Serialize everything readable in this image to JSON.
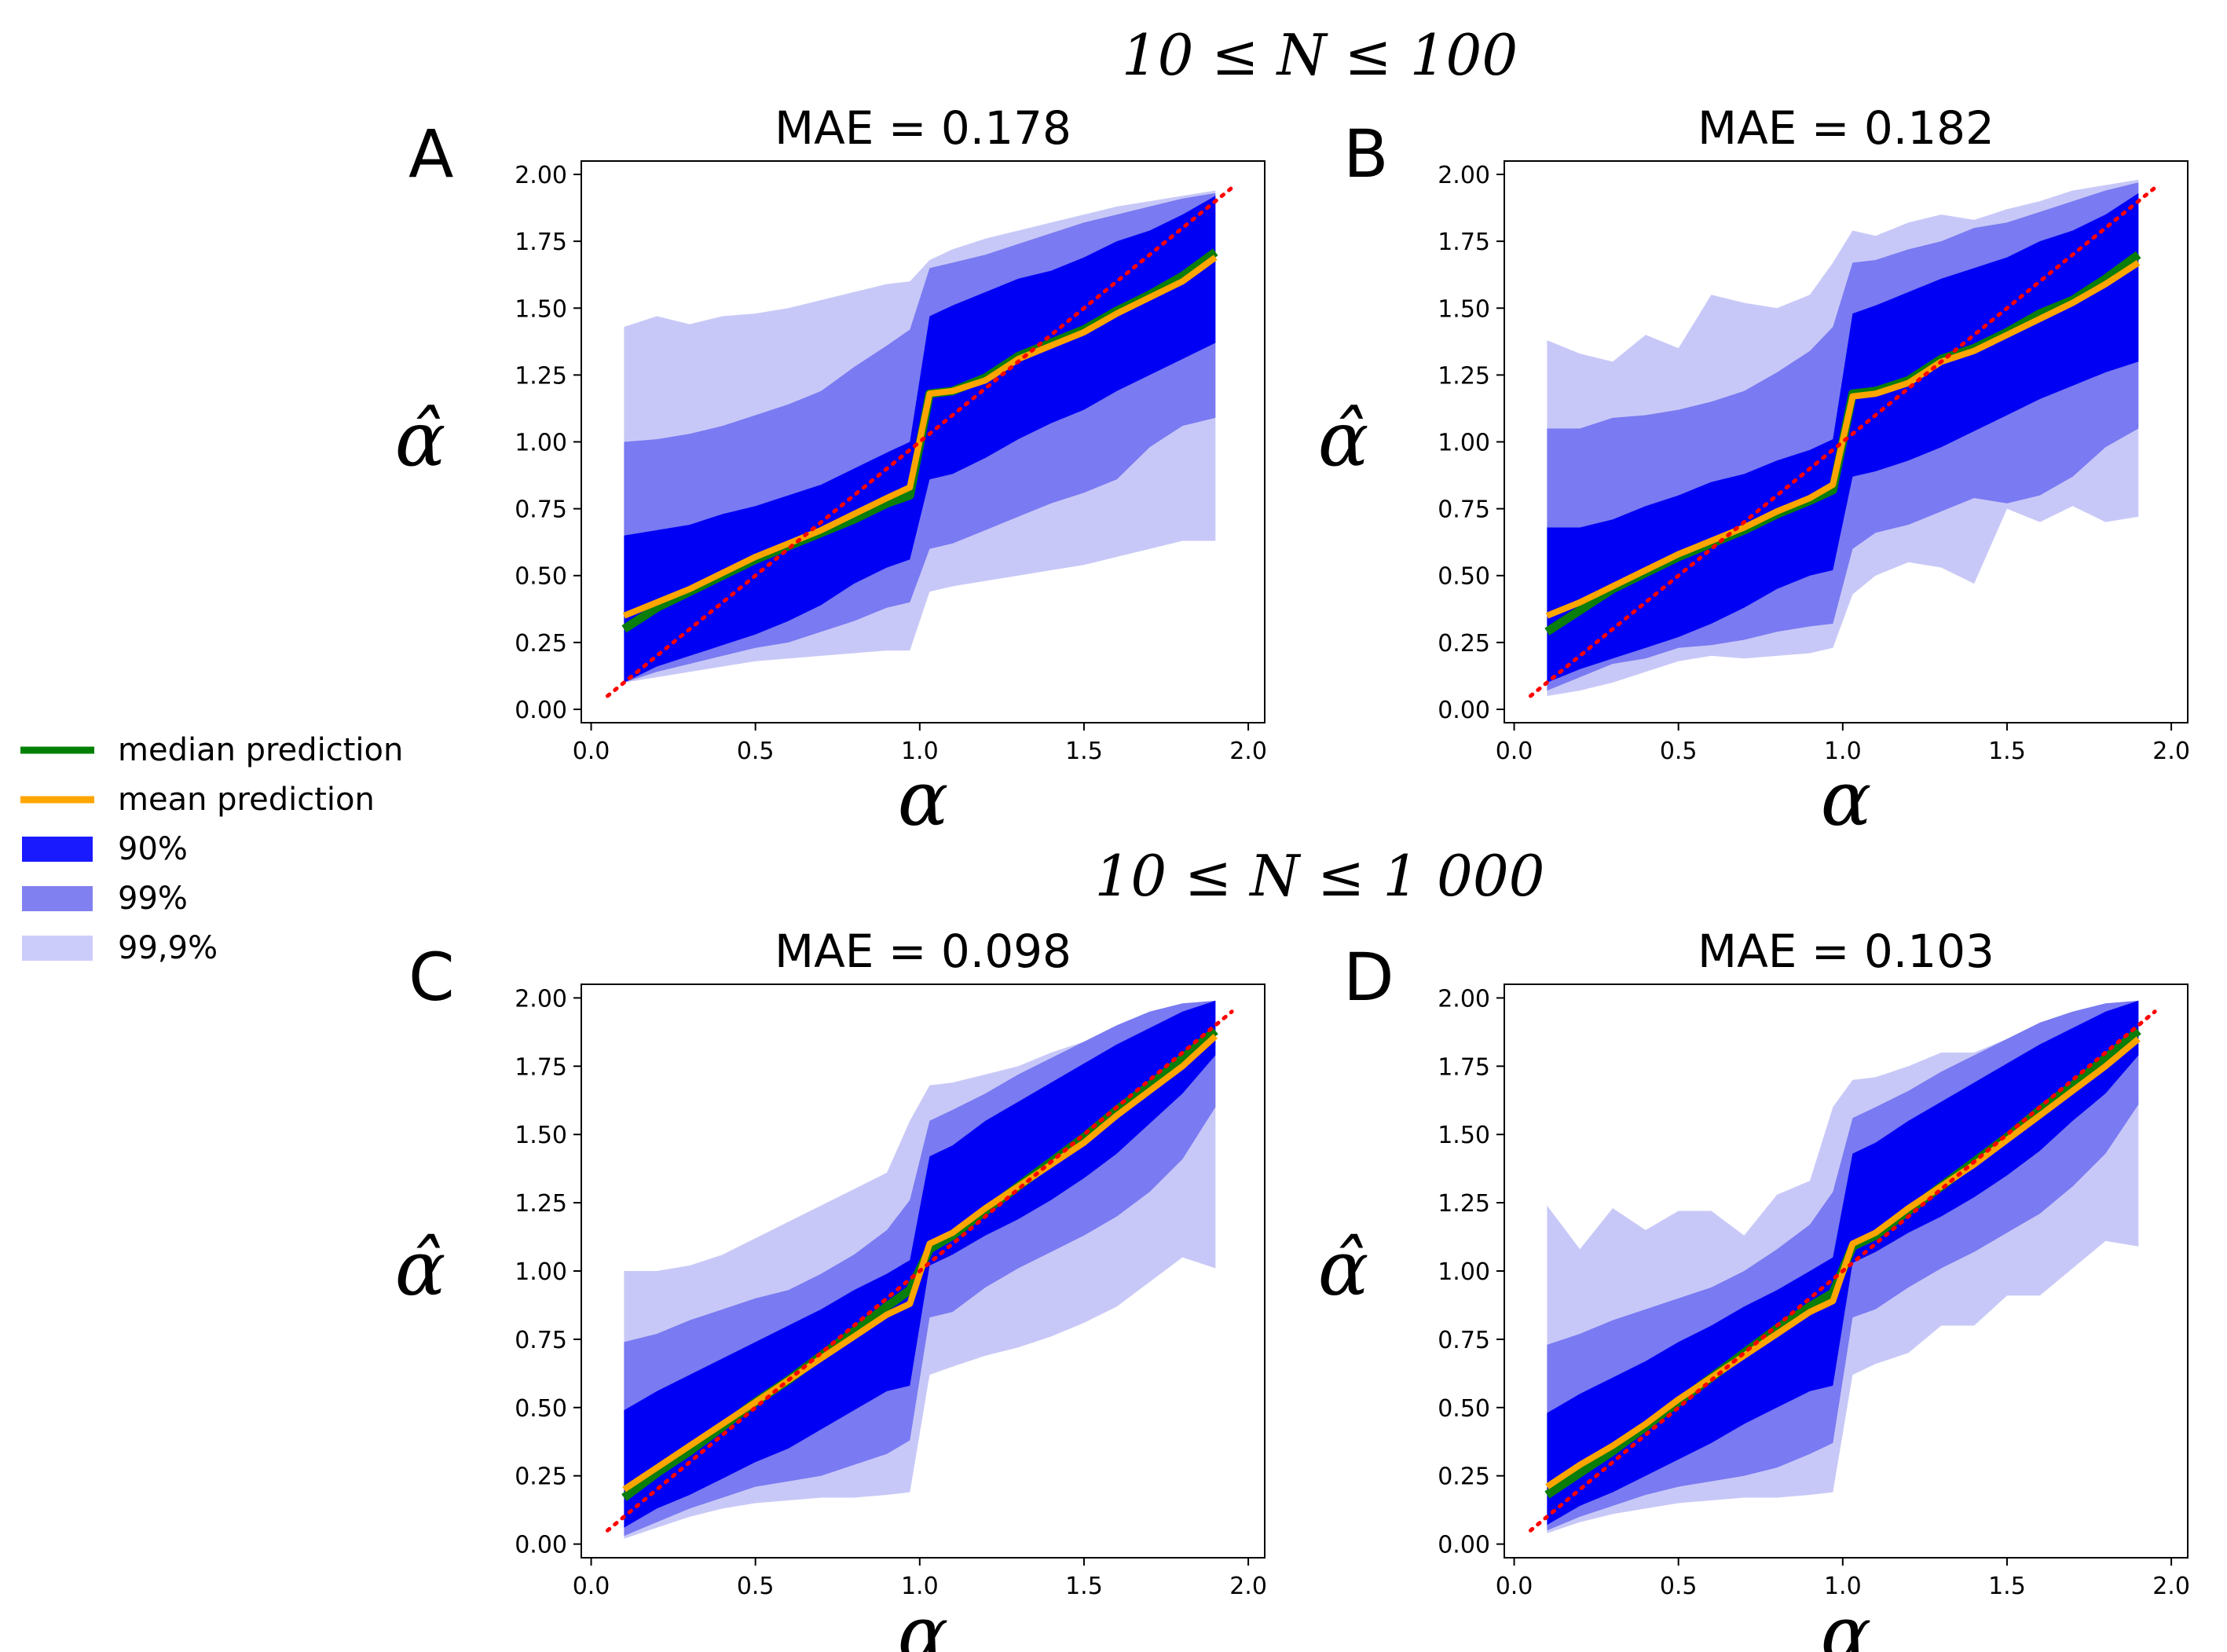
{
  "figure": {
    "row_titles": [
      "10 ≤ N ≤ 100",
      "10 ≤ N ≤ 1 000"
    ],
    "legend": [
      {
        "label": "median prediction",
        "kind": "line",
        "color": "#008000"
      },
      {
        "label": "mean prediction",
        "kind": "line",
        "color": "#ffa500"
      },
      {
        "label": "90%",
        "kind": "patch",
        "color": "#1a1aff"
      },
      {
        "label": "99%",
        "kind": "patch",
        "color": "#8080f0"
      },
      {
        "label": "99,9%",
        "kind": "patch",
        "color": "#ccccfa"
      }
    ],
    "colors": {
      "band90": "#0000f5",
      "band99": "#7a7af2",
      "band999": "#c8c8f8",
      "median": "#0a7d0a",
      "mean": "#ffa500",
      "identity": "#ff0000"
    }
  },
  "chart_data": [
    {
      "type": "area",
      "panel": "A",
      "title": "MAE = 0.178",
      "xlabel": "α",
      "ylabel": "α̂",
      "xlim": [
        -0.03,
        2.05
      ],
      "ylim": [
        -0.05,
        2.05
      ],
      "xticks": [
        "0.0",
        "0.5",
        "1.0",
        "1.5",
        "2.0"
      ],
      "yticks": [
        "0.00",
        "0.25",
        "0.50",
        "0.75",
        "1.00",
        "1.25",
        "1.50",
        "1.75",
        "2.00"
      ],
      "x": [
        0.1,
        0.2,
        0.3,
        0.4,
        0.5,
        0.6,
        0.7,
        0.8,
        0.9,
        0.97,
        1.03,
        1.1,
        1.2,
        1.3,
        1.4,
        1.5,
        1.6,
        1.7,
        1.8,
        1.9
      ],
      "median": [
        0.3,
        0.38,
        0.44,
        0.5,
        0.56,
        0.61,
        0.66,
        0.71,
        0.77,
        0.8,
        1.18,
        1.19,
        1.24,
        1.32,
        1.37,
        1.42,
        1.49,
        1.55,
        1.62,
        1.71
      ],
      "mean": [
        0.35,
        0.4,
        0.45,
        0.51,
        0.57,
        0.62,
        0.67,
        0.73,
        0.79,
        0.83,
        1.18,
        1.19,
        1.23,
        1.31,
        1.36,
        1.41,
        1.48,
        1.54,
        1.6,
        1.69
      ],
      "band90": {
        "lower": [
          0.1,
          0.16,
          0.2,
          0.24,
          0.28,
          0.33,
          0.39,
          0.47,
          0.53,
          0.56,
          0.86,
          0.88,
          0.94,
          1.01,
          1.07,
          1.12,
          1.19,
          1.25,
          1.31,
          1.37
        ],
        "upper": [
          0.65,
          0.67,
          0.69,
          0.73,
          0.76,
          0.8,
          0.84,
          0.9,
          0.96,
          1.0,
          1.47,
          1.51,
          1.56,
          1.61,
          1.64,
          1.69,
          1.75,
          1.79,
          1.85,
          1.92
        ]
      },
      "band99": {
        "lower": [
          0.1,
          0.14,
          0.17,
          0.2,
          0.23,
          0.25,
          0.29,
          0.33,
          0.38,
          0.4,
          0.6,
          0.62,
          0.67,
          0.72,
          0.77,
          0.81,
          0.86,
          0.98,
          1.06,
          1.09
        ],
        "upper": [
          1.0,
          1.01,
          1.03,
          1.06,
          1.1,
          1.14,
          1.19,
          1.28,
          1.36,
          1.42,
          1.65,
          1.67,
          1.7,
          1.74,
          1.78,
          1.82,
          1.85,
          1.88,
          1.91,
          1.93
        ]
      },
      "band999": {
        "lower": [
          0.1,
          0.12,
          0.14,
          0.16,
          0.18,
          0.19,
          0.2,
          0.21,
          0.22,
          0.22,
          0.44,
          0.46,
          0.48,
          0.5,
          0.52,
          0.54,
          0.57,
          0.6,
          0.63,
          0.63
        ],
        "upper": [
          1.43,
          1.47,
          1.44,
          1.47,
          1.48,
          1.5,
          1.53,
          1.56,
          1.59,
          1.6,
          1.68,
          1.72,
          1.76,
          1.79,
          1.82,
          1.85,
          1.88,
          1.9,
          1.92,
          1.94
        ]
      }
    },
    {
      "type": "area",
      "panel": "B",
      "title": "MAE = 0.182",
      "xlabel": "α",
      "ylabel": "α̂",
      "xlim": [
        -0.03,
        2.05
      ],
      "ylim": [
        -0.05,
        2.05
      ],
      "xticks": [
        "0.0",
        "0.5",
        "1.0",
        "1.5",
        "2.0"
      ],
      "yticks": [
        "0.00",
        "0.25",
        "0.50",
        "0.75",
        "1.00",
        "1.25",
        "1.50",
        "1.75",
        "2.00"
      ],
      "x": [
        0.1,
        0.2,
        0.3,
        0.4,
        0.5,
        0.6,
        0.7,
        0.8,
        0.9,
        0.97,
        1.03,
        1.1,
        1.2,
        1.3,
        1.4,
        1.5,
        1.6,
        1.7,
        1.8,
        1.9
      ],
      "median": [
        0.29,
        0.37,
        0.45,
        0.51,
        0.57,
        0.62,
        0.67,
        0.73,
        0.78,
        0.82,
        1.18,
        1.19,
        1.23,
        1.31,
        1.35,
        1.41,
        1.48,
        1.53,
        1.61,
        1.7
      ],
      "mean": [
        0.35,
        0.4,
        0.46,
        0.52,
        0.58,
        0.63,
        0.68,
        0.74,
        0.79,
        0.84,
        1.17,
        1.18,
        1.22,
        1.3,
        1.34,
        1.4,
        1.46,
        1.52,
        1.59,
        1.67
      ],
      "band90": {
        "lower": [
          0.1,
          0.15,
          0.19,
          0.23,
          0.27,
          0.32,
          0.38,
          0.45,
          0.5,
          0.52,
          0.87,
          0.89,
          0.93,
          0.98,
          1.04,
          1.1,
          1.16,
          1.21,
          1.26,
          1.3
        ],
        "upper": [
          0.68,
          0.68,
          0.71,
          0.76,
          0.8,
          0.85,
          0.88,
          0.93,
          0.97,
          1.01,
          1.48,
          1.51,
          1.56,
          1.61,
          1.65,
          1.69,
          1.75,
          1.79,
          1.85,
          1.93
        ]
      },
      "band99": {
        "lower": [
          0.07,
          0.12,
          0.17,
          0.19,
          0.23,
          0.24,
          0.26,
          0.29,
          0.31,
          0.32,
          0.6,
          0.66,
          0.69,
          0.74,
          0.79,
          0.77,
          0.8,
          0.87,
          0.98,
          1.05
        ],
        "upper": [
          1.05,
          1.05,
          1.09,
          1.1,
          1.12,
          1.15,
          1.19,
          1.26,
          1.34,
          1.43,
          1.67,
          1.68,
          1.72,
          1.75,
          1.8,
          1.82,
          1.86,
          1.9,
          1.94,
          1.97
        ]
      },
      "band999": {
        "lower": [
          0.05,
          0.07,
          0.1,
          0.14,
          0.18,
          0.2,
          0.19,
          0.2,
          0.21,
          0.23,
          0.43,
          0.5,
          0.55,
          0.53,
          0.47,
          0.75,
          0.7,
          0.76,
          0.7,
          0.72
        ],
        "upper": [
          1.38,
          1.33,
          1.3,
          1.4,
          1.35,
          1.55,
          1.52,
          1.5,
          1.55,
          1.67,
          1.79,
          1.77,
          1.82,
          1.85,
          1.83,
          1.87,
          1.9,
          1.94,
          1.96,
          1.98
        ]
      }
    },
    {
      "type": "area",
      "panel": "C",
      "title": "MAE = 0.098",
      "xlabel": "α",
      "ylabel": "α̂",
      "xlim": [
        -0.03,
        2.05
      ],
      "ylim": [
        -0.05,
        2.05
      ],
      "xticks": [
        "0.0",
        "0.5",
        "1.0",
        "1.5",
        "2.0"
      ],
      "yticks": [
        "0.00",
        "0.25",
        "0.50",
        "0.75",
        "1.00",
        "1.25",
        "1.50",
        "1.75",
        "2.00"
      ],
      "x": [
        0.1,
        0.2,
        0.3,
        0.4,
        0.5,
        0.6,
        0.7,
        0.8,
        0.9,
        0.97,
        1.03,
        1.1,
        1.2,
        1.3,
        1.4,
        1.5,
        1.6,
        1.7,
        1.8,
        1.9
      ],
      "median": [
        0.17,
        0.26,
        0.34,
        0.43,
        0.52,
        0.6,
        0.69,
        0.78,
        0.87,
        0.93,
        1.08,
        1.13,
        1.22,
        1.31,
        1.4,
        1.49,
        1.59,
        1.68,
        1.78,
        1.88
      ],
      "mean": [
        0.2,
        0.28,
        0.36,
        0.44,
        0.52,
        0.6,
        0.68,
        0.76,
        0.84,
        0.88,
        1.1,
        1.14,
        1.23,
        1.31,
        1.39,
        1.47,
        1.57,
        1.66,
        1.75,
        1.86
      ],
      "band90": {
        "lower": [
          0.06,
          0.13,
          0.18,
          0.24,
          0.3,
          0.35,
          0.42,
          0.49,
          0.56,
          0.58,
          1.02,
          1.06,
          1.13,
          1.19,
          1.26,
          1.34,
          1.43,
          1.54,
          1.65,
          1.79
        ],
        "upper": [
          0.49,
          0.56,
          0.62,
          0.68,
          0.74,
          0.8,
          0.86,
          0.93,
          0.99,
          1.04,
          1.42,
          1.46,
          1.55,
          1.62,
          1.69,
          1.76,
          1.83,
          1.89,
          1.95,
          1.99
        ]
      },
      "band99": {
        "lower": [
          0.03,
          0.08,
          0.13,
          0.17,
          0.21,
          0.23,
          0.25,
          0.29,
          0.33,
          0.38,
          0.83,
          0.85,
          0.94,
          1.01,
          1.07,
          1.13,
          1.2,
          1.29,
          1.41,
          1.6
        ],
        "upper": [
          0.74,
          0.77,
          0.82,
          0.86,
          0.9,
          0.93,
          0.99,
          1.06,
          1.15,
          1.26,
          1.55,
          1.59,
          1.65,
          1.72,
          1.78,
          1.84,
          1.9,
          1.95,
          1.98,
          1.99
        ]
      },
      "band999": {
        "lower": [
          0.02,
          0.06,
          0.1,
          0.13,
          0.15,
          0.16,
          0.17,
          0.17,
          0.18,
          0.19,
          0.62,
          0.65,
          0.69,
          0.72,
          0.76,
          0.81,
          0.87,
          0.96,
          1.05,
          1.01
        ],
        "upper": [
          1.0,
          1.0,
          1.02,
          1.06,
          1.12,
          1.18,
          1.24,
          1.3,
          1.36,
          1.55,
          1.68,
          1.69,
          1.72,
          1.75,
          1.8,
          1.84,
          1.88,
          1.92,
          1.96,
          1.99
        ]
      }
    },
    {
      "type": "area",
      "panel": "D",
      "title": "MAE = 0.103",
      "xlabel": "α",
      "ylabel": "α̂",
      "xlim": [
        -0.03,
        2.05
      ],
      "ylim": [
        -0.05,
        2.05
      ],
      "xticks": [
        "0.0",
        "0.5",
        "1.0",
        "1.5",
        "2.0"
      ],
      "yticks": [
        "0.00",
        "0.25",
        "0.50",
        "0.75",
        "1.00",
        "1.25",
        "1.50",
        "1.75",
        "2.00"
      ],
      "x": [
        0.1,
        0.2,
        0.3,
        0.4,
        0.5,
        0.6,
        0.7,
        0.8,
        0.9,
        0.97,
        1.03,
        1.1,
        1.2,
        1.3,
        1.4,
        1.5,
        1.6,
        1.7,
        1.8,
        1.9
      ],
      "median": [
        0.18,
        0.26,
        0.34,
        0.43,
        0.52,
        0.61,
        0.7,
        0.79,
        0.87,
        0.92,
        1.09,
        1.13,
        1.22,
        1.31,
        1.4,
        1.49,
        1.59,
        1.68,
        1.78,
        1.88
      ],
      "mean": [
        0.21,
        0.29,
        0.36,
        0.44,
        0.53,
        0.61,
        0.69,
        0.77,
        0.85,
        0.89,
        1.1,
        1.14,
        1.23,
        1.31,
        1.39,
        1.48,
        1.57,
        1.66,
        1.75,
        1.85
      ],
      "band90": {
        "lower": [
          0.07,
          0.14,
          0.19,
          0.25,
          0.31,
          0.37,
          0.44,
          0.5,
          0.56,
          0.58,
          1.03,
          1.07,
          1.14,
          1.2,
          1.27,
          1.35,
          1.44,
          1.55,
          1.65,
          1.79
        ],
        "upper": [
          0.48,
          0.55,
          0.61,
          0.67,
          0.74,
          0.8,
          0.87,
          0.93,
          1.0,
          1.05,
          1.43,
          1.47,
          1.55,
          1.62,
          1.69,
          1.76,
          1.83,
          1.89,
          1.95,
          1.99
        ]
      },
      "band99": {
        "lower": [
          0.05,
          0.1,
          0.14,
          0.18,
          0.21,
          0.23,
          0.25,
          0.28,
          0.33,
          0.37,
          0.83,
          0.86,
          0.94,
          1.01,
          1.07,
          1.14,
          1.21,
          1.31,
          1.43,
          1.61
        ],
        "upper": [
          0.73,
          0.77,
          0.82,
          0.86,
          0.9,
          0.94,
          1.0,
          1.08,
          1.17,
          1.29,
          1.56,
          1.6,
          1.66,
          1.73,
          1.79,
          1.85,
          1.91,
          1.95,
          1.98,
          1.99
        ]
      },
      "band999": {
        "lower": [
          0.04,
          0.08,
          0.11,
          0.13,
          0.15,
          0.16,
          0.17,
          0.17,
          0.18,
          0.19,
          0.62,
          0.66,
          0.7,
          0.8,
          0.8,
          0.91,
          0.91,
          1.01,
          1.11,
          1.09
        ],
        "upper": [
          1.24,
          1.08,
          1.23,
          1.15,
          1.22,
          1.22,
          1.13,
          1.28,
          1.33,
          1.6,
          1.7,
          1.71,
          1.75,
          1.8,
          1.8,
          1.85,
          1.88,
          1.92,
          1.96,
          1.99
        ]
      }
    }
  ]
}
